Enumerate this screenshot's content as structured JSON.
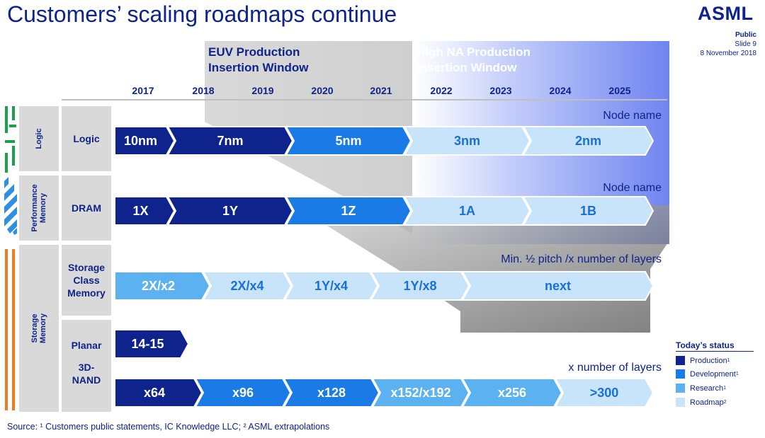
{
  "title": "Customers’ scaling roadmaps continue",
  "logo": "ASML",
  "meta": {
    "classification": "Public",
    "slide": "Slide 9",
    "date": "8 November 2018"
  },
  "windows": {
    "euv": {
      "line1": "EUV Production",
      "line2": "Insertion Window"
    },
    "high_na": {
      "line1": "High NA Production",
      "line2": "Insertion Window"
    }
  },
  "years": [
    "2017",
    "2018",
    "2019",
    "2020",
    "2021",
    "2022",
    "2023",
    "2024",
    "2025"
  ],
  "categories": [
    {
      "label_lines": [
        "Logic"
      ]
    },
    {
      "label_lines": [
        "Performance",
        "Memory"
      ]
    },
    {
      "label_lines": [
        "Storage",
        "Memory"
      ]
    }
  ],
  "rows": [
    {
      "label_lines": [
        "Logic"
      ],
      "note": "Node name",
      "segments": [
        {
          "text": "10nm",
          "status": "production"
        },
        {
          "text": "7nm",
          "status": "production"
        },
        {
          "text": "5nm",
          "status": "development"
        },
        {
          "text": "3nm",
          "status": "roadmap"
        },
        {
          "text": "2nm",
          "status": "roadmap"
        }
      ]
    },
    {
      "label_lines": [
        "DRAM"
      ],
      "note": "Node name",
      "segments": [
        {
          "text": "1X",
          "status": "production"
        },
        {
          "text": "1Y",
          "status": "production"
        },
        {
          "text": "1Z",
          "status": "development"
        },
        {
          "text": "1A",
          "status": "roadmap"
        },
        {
          "text": "1B",
          "status": "roadmap"
        }
      ]
    },
    {
      "label_lines": [
        "Storage",
        "Class",
        "Memory"
      ],
      "note": "Min. ½ pitch /x number of layers",
      "segments": [
        {
          "text": "2X/x2",
          "status": "research"
        },
        {
          "text": "2X/x4",
          "status": "roadmap"
        },
        {
          "text": "1Y/x4",
          "status": "roadmap"
        },
        {
          "text": "1Y/x8",
          "status": "roadmap"
        },
        {
          "text": "next",
          "status": "roadmap"
        }
      ]
    },
    {
      "label_lines": [
        "Planar"
      ],
      "note": "",
      "segments": [
        {
          "text": "14-15",
          "status": "production"
        }
      ]
    },
    {
      "label_lines": [
        "3D-",
        "NAND"
      ],
      "note": "x number of layers",
      "segments": [
        {
          "text": "x64",
          "status": "production"
        },
        {
          "text": "x96",
          "status": "development"
        },
        {
          "text": "x128",
          "status": "development"
        },
        {
          "text": "x152/x192",
          "status": "research"
        },
        {
          "text": "x256",
          "status": "research"
        },
        {
          "text": ">300",
          "status": "roadmap"
        }
      ]
    }
  ],
  "legend": {
    "title": "Today’s status",
    "items": [
      {
        "key": "production",
        "label": "Production",
        "sup": "1"
      },
      {
        "key": "development",
        "label": "Development",
        "sup": "1"
      },
      {
        "key": "research",
        "label": "Research",
        "sup": "1"
      },
      {
        "key": "roadmap",
        "label": "Roadmap",
        "sup": "2"
      }
    ]
  },
  "source": "Source: ¹ Customers public statements, IC Knowledge LLC; ² ASML extrapolations",
  "colors": {
    "brand": "#0f238c",
    "production": "#0f238c",
    "development": "#1a7be6",
    "research": "#5cb2f0",
    "roadmap": "#c8e4fa",
    "research_text": "#ffffff",
    "roadmap_text": "#1a6fd6",
    "euv_window": "#d6d6d6",
    "high_na_window": "#6f84f0",
    "category_bar_green": "#19a24b",
    "category_bar_blue": "#2f8fe0",
    "category_bar_orange": "#ee7a22"
  }
}
